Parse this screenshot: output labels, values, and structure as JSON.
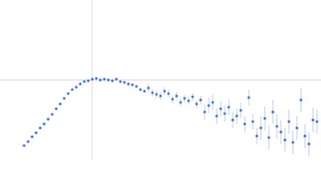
{
  "chart_data": {
    "type": "scatter",
    "x": [
      30,
      35,
      40,
      45,
      50,
      55,
      60,
      65,
      70,
      75,
      80,
      85,
      90,
      95,
      100,
      105,
      110,
      115,
      120,
      125,
      130,
      135,
      140,
      145,
      150,
      155,
      160,
      165,
      170,
      175,
      180,
      185,
      190,
      195,
      200,
      205,
      210,
      215,
      220,
      225,
      230,
      235,
      240,
      245,
      250,
      255,
      260,
      265,
      270,
      275,
      280,
      285,
      290,
      295,
      300,
      305,
      310,
      315,
      320,
      325,
      330,
      335,
      340,
      345,
      350,
      355,
      360,
      365,
      370,
      375,
      380,
      385,
      390,
      395
    ],
    "series": [
      {
        "color": "#3a6cc4",
        "error_color": "#a9bde6",
        "values": [
          18,
          23,
          29,
          34,
          40,
          45,
          51,
          57,
          64,
          70,
          77,
          83,
          88,
          91,
          95,
          98,
          99,
          101,
          102,
          100,
          101,
          100,
          99,
          101,
          98,
          97,
          95,
          94,
          92,
          88,
          86,
          90,
          84,
          82,
          80,
          86,
          83,
          76,
          80,
          72,
          77,
          74,
          79,
          70,
          75,
          60,
          68,
          72,
          55,
          64,
          58,
          66,
          50,
          55,
          62,
          45,
          78,
          48,
          30,
          40,
          52,
          28,
          60,
          42,
          35,
          25,
          48,
          22,
          40,
          75,
          30,
          20,
          50,
          48
        ],
        "errors": [
          1,
          1,
          1,
          1,
          1,
          1,
          1,
          1,
          1,
          1,
          1,
          1,
          1,
          1,
          1,
          1,
          1,
          2,
          2,
          2,
          2,
          2,
          2,
          2,
          2,
          2,
          2,
          2,
          2,
          2,
          2,
          5,
          5,
          5,
          5,
          5,
          5,
          5,
          5,
          5,
          5,
          5,
          5,
          5,
          5,
          10,
          10,
          10,
          10,
          10,
          10,
          10,
          10,
          10,
          10,
          10,
          10,
          10,
          10,
          15,
          15,
          15,
          15,
          15,
          15,
          15,
          15,
          15,
          15,
          15,
          15,
          15,
          15,
          15
        ]
      }
    ],
    "xlim": [
      0,
      400
    ],
    "ylim": [
      0,
      200
    ],
    "ref_lines": {
      "x": 115,
      "y": 100,
      "color": "#d0d4dc"
    }
  }
}
